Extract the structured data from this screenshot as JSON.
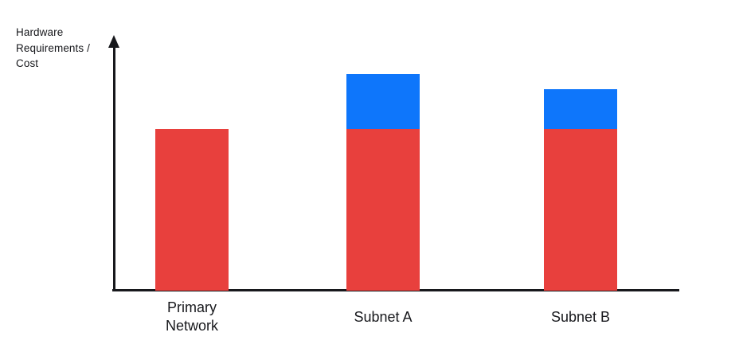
{
  "page": {
    "background": "#ffffff"
  },
  "colors": {
    "bar_red": "#e8403d",
    "bar_blue": "#0e76fb",
    "axis": "#17181c",
    "text": "#17181c"
  },
  "chart_data": {
    "type": "bar",
    "stacked": true,
    "title": "",
    "xlabel": "",
    "ylabel": "Hardware Requirements / Cost",
    "ylabel_display": "Hardware\nRequirements /\nCost",
    "categories": [
      "Primary Network",
      "Subnet A",
      "Subnet B"
    ],
    "categories_display": [
      "Primary\nNetwork",
      "Subnet A",
      "Subnet B"
    ],
    "series": [
      {
        "name": "red base segment",
        "color": "#e8403d",
        "values": [
          63.5,
          63.5,
          63.5
        ]
      },
      {
        "name": "blue top segment",
        "color": "#0e76fb",
        "values": [
          0,
          21.5,
          15.5
        ]
      }
    ],
    "ylim": [
      0,
      100
    ],
    "grid": false,
    "legend": "none",
    "axis_arrow": "up"
  }
}
